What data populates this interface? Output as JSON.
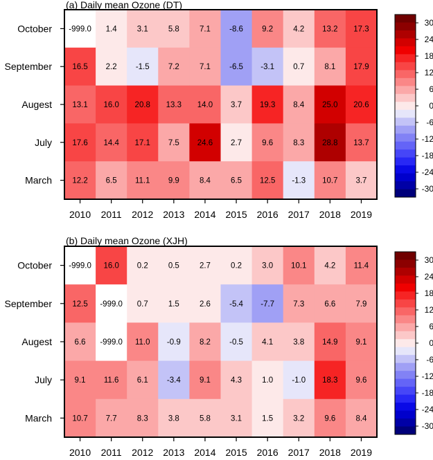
{
  "chart_data": [
    {
      "type": "heatmap",
      "title": "(a) Daily mean Ozone (DT)",
      "x_categories": [
        "2010",
        "2011",
        "2012",
        "2013",
        "2014",
        "2015",
        "2016",
        "2017",
        "2018",
        "2019"
      ],
      "y_categories": [
        "October",
        "September",
        "Augest",
        "July",
        "March"
      ],
      "values": [
        [
          -999.0,
          1.4,
          3.1,
          5.8,
          7.1,
          -8.6,
          9.2,
          4.2,
          13.2,
          17.3
        ],
        [
          16.5,
          2.2,
          -1.5,
          7.2,
          7.1,
          -6.5,
          -3.1,
          0.7,
          8.1,
          17.9
        ],
        [
          13.1,
          16.0,
          20.8,
          13.3,
          14.0,
          3.7,
          19.3,
          8.4,
          25.0,
          20.6
        ],
        [
          17.6,
          14.4,
          17.1,
          7.5,
          24.6,
          2.7,
          9.6,
          8.3,
          28.8,
          13.7
        ],
        [
          12.2,
          6.5,
          11.1,
          9.9,
          8.4,
          6.5,
          12.5,
          -1.3,
          10.7,
          3.7
        ]
      ],
      "labels": [
        [
          "-999.0",
          "1.4",
          "3.1",
          "5.8",
          "7.1",
          "-8.6",
          "9.2",
          "4.2",
          "13.2",
          "17.3"
        ],
        [
          "16.5",
          "2.2",
          "-1.5",
          "7.2",
          "7.1",
          "-6.5",
          "-3.1",
          "0.7",
          "8.1",
          "17.9"
        ],
        [
          "13.1",
          "16.0",
          "20.8",
          "13.3",
          "14.0",
          "3.7",
          "19.3",
          "8.4",
          "25.0",
          "20.6"
        ],
        [
          "17.6",
          "14.4",
          "17.1",
          "7.5",
          "24.6",
          "2.7",
          "9.6",
          "8.3",
          "28.8",
          "13.7"
        ],
        [
          "12.2",
          "6.5",
          "11.1",
          "9.9",
          "8.4",
          "6.5",
          "12.5",
          "-1.3",
          "10.7",
          "3.7"
        ]
      ],
      "missing_value": -999.0,
      "colorbar": {
        "min": -33,
        "max": 33,
        "ticks": [
          "30",
          "24",
          "18",
          "12",
          "6",
          "0",
          "-6",
          "-12",
          "-18",
          "-24",
          "-30"
        ]
      }
    },
    {
      "type": "heatmap",
      "title": "(b) Daily mean Ozone (XJH)",
      "x_categories": [
        "2010",
        "2011",
        "2012",
        "2013",
        "2014",
        "2015",
        "2016",
        "2017",
        "2018",
        "2019"
      ],
      "y_categories": [
        "October",
        "September",
        "Augest",
        "July",
        "March"
      ],
      "values": [
        [
          -999.0,
          16.0,
          0.2,
          0.5,
          2.7,
          0.2,
          3.0,
          10.1,
          4.2,
          11.4
        ],
        [
          12.5,
          -999.0,
          0.7,
          1.5,
          2.6,
          -5.4,
          -7.7,
          7.3,
          6.6,
          7.9
        ],
        [
          6.6,
          -999.0,
          11.0,
          -0.9,
          8.2,
          -0.5,
          4.1,
          3.8,
          14.9,
          9.1
        ],
        [
          9.1,
          11.6,
          6.1,
          -3.4,
          9.1,
          4.3,
          1.0,
          -1.0,
          18.3,
          9.6
        ],
        [
          10.7,
          7.7,
          8.3,
          3.8,
          5.8,
          3.1,
          1.5,
          3.2,
          9.6,
          8.4
        ]
      ],
      "labels": [
        [
          "-999.0",
          "16.0",
          "0.2",
          "0.5",
          "2.7",
          "0.2",
          "3.0",
          "10.1",
          "4.2",
          "11.4"
        ],
        [
          "12.5",
          "-999.0",
          "0.7",
          "1.5",
          "2.6",
          "-5.4",
          "-7.7",
          "7.3",
          "6.6",
          "7.9"
        ],
        [
          "6.6",
          "-999.0",
          "11.0",
          "-0.9",
          "8.2",
          "-0.5",
          "4.1",
          "3.8",
          "14.9",
          "9.1"
        ],
        [
          "9.1",
          "11.6",
          "6.1",
          "-3.4",
          "9.1",
          "4.3",
          "1.0",
          "-1.0",
          "18.3",
          "9.6"
        ],
        [
          "10.7",
          "7.7",
          "8.3",
          "3.8",
          "5.8",
          "3.1",
          "1.5",
          "3.2",
          "9.6",
          "8.4"
        ]
      ],
      "missing_value": -999.0,
      "colorbar": {
        "min": -33,
        "max": 33,
        "ticks": [
          "30",
          "24",
          "18",
          "12",
          "6",
          "0",
          "-6",
          "-12",
          "-18",
          "-24",
          "-30"
        ]
      }
    }
  ],
  "colors": {
    "missing": "#ffffff",
    "palette_low_to_high": [
      "#00007a",
      "#0000a6",
      "#0000cc",
      "#0a0ae6",
      "#2828f5",
      "#4646f7",
      "#6464f7",
      "#8282f5",
      "#a0a0f5",
      "#c3c3f7",
      "#e6e6fa",
      "#fde9e9",
      "#fcc8c8",
      "#fba8a8",
      "#fa8787",
      "#f96666",
      "#f84545",
      "#f62424",
      "#f00000",
      "#d20000",
      "#ae0000",
      "#8c0000",
      "#700000"
    ],
    "boundaries": [
      -30,
      -27,
      -24,
      -21,
      -18,
      -15,
      -12,
      -9,
      -6,
      -3,
      0,
      3,
      6,
      9,
      12,
      15,
      18,
      21,
      24,
      27,
      30,
      33
    ]
  }
}
